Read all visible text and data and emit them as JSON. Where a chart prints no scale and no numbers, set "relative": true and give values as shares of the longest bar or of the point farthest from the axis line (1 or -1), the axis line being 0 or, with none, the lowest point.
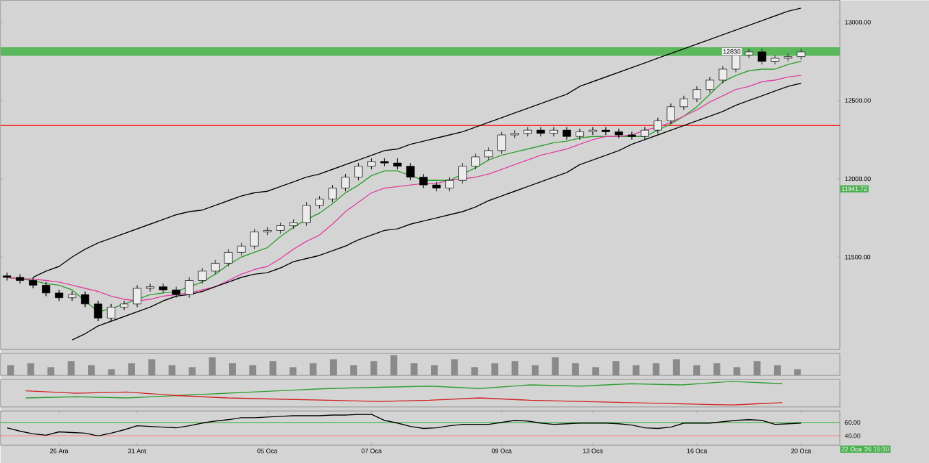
{
  "chart_data": [
    {
      "type": "candlestick",
      "ylim": [
        10910,
        13140
      ],
      "tick_labels": "y",
      "yticks": [
        {
          "value": 11500,
          "label": "11500.00"
        },
        {
          "value": 12000,
          "label": "12000.00"
        },
        {
          "value": 12500,
          "label": "12500.00"
        },
        {
          "value": 13000,
          "label": "13000.00"
        }
      ],
      "categories": [
        null,
        null,
        null,
        null,
        null,
        null,
        null,
        null,
        null,
        null,
        null,
        null,
        null,
        null,
        null,
        null,
        null,
        null,
        null,
        null,
        null,
        null,
        null,
        null,
        null,
        null,
        null,
        null,
        null,
        null,
        null,
        null,
        null,
        null,
        null,
        null,
        null,
        null,
        null,
        null,
        null,
        null,
        null,
        null,
        null,
        null,
        null,
        null,
        null,
        null,
        null,
        null,
        null,
        null,
        null,
        null,
        null,
        null,
        null,
        null,
        null,
        null
      ],
      "ohlc": [
        [
          11380,
          11400,
          11350,
          11370
        ],
        [
          11370,
          11390,
          11330,
          11350
        ],
        [
          11350,
          11370,
          11300,
          11320
        ],
        [
          11320,
          11340,
          11250,
          11270
        ],
        [
          11270,
          11290,
          11220,
          11240
        ],
        [
          11240,
          11280,
          11220,
          11260
        ],
        [
          11260,
          11280,
          11180,
          11200
        ],
        [
          11200,
          11220,
          11090,
          11110
        ],
        [
          11110,
          11200,
          11090,
          11180
        ],
        [
          11180,
          11220,
          11160,
          11200
        ],
        [
          11200,
          11320,
          11180,
          11300
        ],
        [
          11300,
          11330,
          11280,
          11310
        ],
        [
          11310,
          11330,
          11270,
          11290
        ],
        [
          11290,
          11310,
          11240,
          11260
        ],
        [
          11260,
          11370,
          11240,
          11350
        ],
        [
          11350,
          11430,
          11330,
          11410
        ],
        [
          11410,
          11480,
          11390,
          11460
        ],
        [
          11460,
          11550,
          11440,
          11530
        ],
        [
          11530,
          11590,
          11510,
          11570
        ],
        [
          11570,
          11680,
          11550,
          11660
        ],
        [
          11660,
          11690,
          11640,
          11670
        ],
        [
          11670,
          11720,
          11650,
          11700
        ],
        [
          11700,
          11740,
          11680,
          11720
        ],
        [
          11720,
          11850,
          11700,
          11830
        ],
        [
          11830,
          11890,
          11810,
          11870
        ],
        [
          11870,
          11960,
          11850,
          11940
        ],
        [
          11940,
          12030,
          11920,
          12010
        ],
        [
          12010,
          12100,
          11990,
          12080
        ],
        [
          12080,
          12130,
          12060,
          12110
        ],
        [
          12110,
          12130,
          12080,
          12100
        ],
        [
          12100,
          12130,
          12060,
          12080
        ],
        [
          12080,
          12100,
          11990,
          12010
        ],
        [
          12010,
          12030,
          11940,
          11960
        ],
        [
          11960,
          11980,
          11920,
          11940
        ],
        [
          11940,
          12010,
          11920,
          11990
        ],
        [
          11990,
          12100,
          11970,
          12080
        ],
        [
          12080,
          12160,
          12060,
          12140
        ],
        [
          12140,
          12200,
          12120,
          12180
        ],
        [
          12180,
          12300,
          12160,
          12280
        ],
        [
          12280,
          12310,
          12260,
          12290
        ],
        [
          12290,
          12330,
          12270,
          12310
        ],
        [
          12310,
          12330,
          12270,
          12290
        ],
        [
          12290,
          12330,
          12270,
          12310
        ],
        [
          12310,
          12330,
          12250,
          12270
        ],
        [
          12270,
          12320,
          12250,
          12300
        ],
        [
          12300,
          12330,
          12280,
          12310
        ],
        [
          12310,
          12330,
          12280,
          12300
        ],
        [
          12300,
          12320,
          12260,
          12280
        ],
        [
          12280,
          12300,
          12250,
          12270
        ],
        [
          12270,
          12330,
          12250,
          12310
        ],
        [
          12310,
          12390,
          12290,
          12370
        ],
        [
          12370,
          12480,
          12350,
          12460
        ],
        [
          12460,
          12530,
          12440,
          12510
        ],
        [
          12510,
          12590,
          12490,
          12570
        ],
        [
          12570,
          12650,
          12550,
          12630
        ],
        [
          12630,
          12720,
          12610,
          12700
        ],
        [
          12700,
          12810,
          12680,
          12790
        ],
        [
          12790,
          12830,
          12770,
          12810
        ],
        [
          12810,
          12830,
          12730,
          12750
        ],
        [
          12750,
          12790,
          12730,
          12770
        ],
        [
          12770,
          12800,
          12750,
          12780
        ],
        [
          12780,
          12830,
          12760,
          12810
        ]
      ],
      "series": [
        {
          "type": "line",
          "color": "#2e9e2e",
          "values": [
            11370,
            11360,
            11350,
            11330,
            11320,
            11290,
            11220,
            11150,
            11170,
            11200,
            11230,
            11260,
            11270,
            11280,
            11310,
            11340,
            11390,
            11450,
            11500,
            11530,
            11560,
            11630,
            11690,
            11740,
            11780,
            11840,
            11910,
            11960,
            12020,
            12050,
            12050,
            12020,
            11990,
            11990,
            11990,
            12030,
            12070,
            12120,
            12150,
            12170,
            12190,
            12210,
            12230,
            12240,
            12260,
            12270,
            12270,
            12270,
            12270,
            12270,
            12310,
            12350,
            12400,
            12460,
            12540,
            12620,
            12660,
            12690,
            12700,
            12700,
            12730,
            12750
          ]
        },
        {
          "type": "line",
          "color": "#e040a0",
          "values": [
            11370,
            11360,
            11360,
            11350,
            11340,
            11320,
            11300,
            11280,
            11250,
            11230,
            11220,
            11230,
            11250,
            11260,
            11270,
            11290,
            11310,
            11350,
            11390,
            11420,
            11440,
            11490,
            11550,
            11600,
            11640,
            11710,
            11790,
            11850,
            11910,
            11940,
            11950,
            11960,
            11970,
            11970,
            11990,
            12000,
            12010,
            12030,
            12060,
            12090,
            12120,
            12150,
            12170,
            12190,
            12220,
            12250,
            12270,
            12270,
            12280,
            12310,
            12330,
            12360,
            12400,
            12440,
            12490,
            12530,
            12570,
            12590,
            12620,
            12630,
            12650,
            12660
          ]
        },
        {
          "type": "line",
          "color": "#000000",
          "values": [
            null,
            null,
            11370,
            11410,
            11440,
            11500,
            11550,
            11590,
            11620,
            11650,
            11680,
            11710,
            11740,
            11770,
            11790,
            11800,
            11830,
            11860,
            11890,
            11910,
            11920,
            11950,
            11980,
            12010,
            12030,
            12060,
            12090,
            12120,
            12150,
            12180,
            12190,
            12220,
            12240,
            12260,
            12280,
            12300,
            12330,
            12360,
            12390,
            12420,
            12450,
            12480,
            12510,
            12540,
            12590,
            12620,
            12650,
            12680,
            12710,
            12740,
            12770,
            12800,
            12830,
            12860,
            12890,
            12920,
            12950,
            12980,
            13010,
            13040,
            13070,
            13090
          ]
        },
        {
          "type": "line",
          "color": "#000000",
          "values": [
            null,
            null,
            null,
            null,
            null,
            10970,
            11010,
            11060,
            11090,
            11120,
            11150,
            11180,
            11220,
            11250,
            11260,
            11280,
            11310,
            11340,
            11370,
            11390,
            11400,
            11430,
            11470,
            11490,
            11510,
            11540,
            11570,
            11610,
            11640,
            11670,
            11680,
            11710,
            11730,
            11750,
            11770,
            11790,
            11820,
            11860,
            11890,
            11920,
            11950,
            11980,
            12010,
            12040,
            12090,
            12120,
            12150,
            12180,
            12220,
            12250,
            12280,
            12310,
            12340,
            12370,
            12400,
            12430,
            12470,
            12500,
            12530,
            12560,
            12590,
            12610
          ]
        }
      ],
      "ref_lines": [
        {
          "axis": "y",
          "value": 12340,
          "color": "#ff2020"
        }
      ],
      "bands": [
        {
          "axis": "y",
          "from": 12785,
          "to": 12840,
          "color": "#5cb85c"
        }
      ],
      "annotations": [
        "12830",
        "11941.72"
      ]
    },
    {
      "type": "bar",
      "relative": true,
      "tick_labels": false,
      "color": "#8a8a8a",
      "categories": [
        null,
        null,
        null,
        null,
        null,
        null,
        null,
        null,
        null,
        null,
        null,
        null,
        null,
        null,
        null,
        null,
        null,
        null,
        null,
        null,
        null,
        null,
        null,
        null,
        null,
        null,
        null,
        null,
        null,
        null,
        null,
        null,
        null,
        null,
        null,
        null,
        null,
        null,
        null,
        null
      ],
      "values": [
        0.5,
        0.6,
        0.4,
        0.7,
        0.5,
        0.3,
        0.6,
        0.8,
        0.5,
        0.4,
        0.9,
        0.6,
        0.5,
        0.7,
        0.4,
        0.6,
        0.8,
        0.5,
        0.7,
        1.0,
        0.6,
        0.5,
        0.8,
        0.4,
        0.6,
        0.7,
        0.5,
        0.9,
        0.6,
        0.4,
        0.7,
        0.5,
        0.6,
        0.8,
        0.5,
        0.6,
        0.4,
        0.7,
        0.5,
        0.3
      ]
    },
    {
      "type": "line",
      "relative": true,
      "tick_labels": false,
      "categories": [
        null,
        null,
        null,
        null,
        null,
        null,
        null,
        null,
        null,
        null,
        null,
        null,
        null,
        null,
        null,
        null
      ],
      "series": [
        {
          "color": "#2e9e2e",
          "values": [
            0.3,
            0.35,
            0.3,
            0.4,
            0.5,
            0.6,
            0.7,
            0.75,
            0.8,
            0.7,
            0.85,
            0.8,
            0.9,
            0.85,
            1.0,
            0.9
          ]
        },
        {
          "color": "#d02020",
          "values": [
            0.6,
            0.5,
            0.55,
            0.4,
            0.3,
            0.25,
            0.2,
            0.15,
            0.2,
            0.3,
            0.2,
            0.15,
            0.1,
            0.05,
            0,
            0.1
          ]
        }
      ]
    },
    {
      "type": "line",
      "ylim": [
        26,
        77
      ],
      "tick_labels": "xy",
      "yticks": [
        {
          "value": 40,
          "label": "40.00"
        },
        {
          "value": 60,
          "label": "60.00"
        }
      ],
      "categories": [
        null,
        null,
        null,
        null,
        "26 Ara",
        null,
        null,
        null,
        null,
        null,
        "31 Ara",
        null,
        null,
        null,
        null,
        null,
        null,
        null,
        null,
        null,
        "05 Oca",
        null,
        null,
        null,
        null,
        null,
        null,
        null,
        "07 Oca",
        null,
        null,
        null,
        null,
        null,
        null,
        null,
        null,
        null,
        "09 Oca",
        null,
        null,
        null,
        null,
        null,
        null,
        "13 Oca",
        null,
        null,
        null,
        null,
        null,
        null,
        null,
        "16 Oca",
        null,
        null,
        null,
        null,
        null,
        null,
        null,
        "20 Oca"
      ],
      "series": [
        {
          "color": "#000000",
          "values": [
            52,
            47,
            43,
            41,
            46,
            45,
            44,
            40,
            44,
            49,
            55,
            54,
            53,
            52,
            55,
            59,
            62,
            64,
            67,
            67,
            68,
            69,
            70,
            70,
            70,
            71,
            71,
            72,
            72,
            63,
            59,
            54,
            51,
            52,
            55,
            57,
            57,
            57,
            60,
            63,
            62,
            59,
            57,
            58,
            59,
            59,
            59,
            58,
            56,
            52,
            51,
            53,
            59,
            59,
            59,
            61,
            63,
            64,
            63,
            57,
            58,
            59
          ]
        }
      ],
      "ref_lines": [
        {
          "axis": "y",
          "value": 40,
          "color": "#ff8080"
        },
        {
          "axis": "y",
          "value": 60,
          "color": "#60c060"
        }
      ],
      "annotations": [
        "22 Oca '26 15:30"
      ]
    }
  ]
}
